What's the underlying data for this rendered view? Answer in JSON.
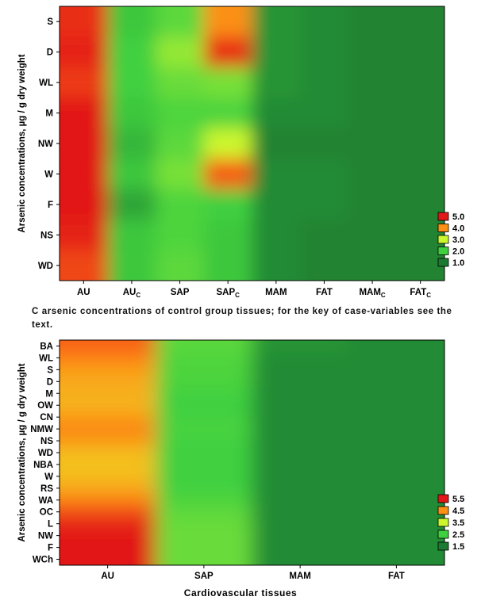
{
  "caption": "C arsenic concentrations of control group tissues; for the key of case-variables see the text.",
  "colors": {
    "dark_green": "#1d7a32",
    "mid_green": "#3fd03f",
    "yellow": "#e8ff2a",
    "orange": "#ff7f12",
    "red": "#e21818"
  },
  "chart_data": [
    {
      "type": "heatmap",
      "title": "",
      "ylabel": "Arsenic concentrations, µg / g dry weight",
      "xlabel": "",
      "x_categories": [
        {
          "base": "AU",
          "sub": ""
        },
        {
          "base": "AU",
          "sub": "C"
        },
        {
          "base": "SAP",
          "sub": ""
        },
        {
          "base": "SAP",
          "sub": "C"
        },
        {
          "base": "MAM",
          "sub": ""
        },
        {
          "base": "FAT",
          "sub": ""
        },
        {
          "base": "MAM",
          "sub": "C"
        },
        {
          "base": "FAT",
          "sub": "C"
        }
      ],
      "y_categories": [
        "S",
        "D",
        "WL",
        "M",
        "NW",
        "W",
        "F",
        "NS",
        "WD"
      ],
      "legend": {
        "position": "right",
        "levels": [
          "5.0",
          "4.0",
          "3.0",
          "2.0",
          "1.0"
        ]
      },
      "color_range": [
        1.0,
        5.0
      ],
      "values": [
        [
          4.8,
          1.9,
          2.2,
          4.0,
          1.3,
          1.2,
          1.1,
          1.1
        ],
        [
          4.9,
          2.0,
          2.6,
          4.8,
          1.3,
          1.2,
          1.1,
          1.1
        ],
        [
          4.7,
          2.0,
          2.3,
          2.4,
          1.3,
          1.2,
          1.1,
          1.1
        ],
        [
          5.0,
          1.9,
          2.1,
          2.1,
          1.2,
          1.2,
          1.1,
          1.1
        ],
        [
          5.4,
          1.7,
          2.2,
          3.0,
          1.1,
          1.1,
          1.1,
          1.1
        ],
        [
          5.2,
          1.9,
          2.4,
          4.4,
          1.2,
          1.2,
          1.1,
          1.1
        ],
        [
          5.4,
          1.5,
          2.1,
          2.0,
          1.2,
          1.2,
          1.1,
          1.1
        ],
        [
          4.9,
          1.9,
          2.1,
          1.9,
          1.2,
          1.1,
          1.1,
          1.1
        ],
        [
          4.6,
          1.9,
          2.2,
          1.9,
          1.2,
          1.1,
          1.1,
          1.1
        ]
      ]
    },
    {
      "type": "heatmap",
      "title": "",
      "ylabel": "Arsenic concentrations, µg / g dry weight",
      "xlabel": "Cardiovascular tissues",
      "x_categories": [
        {
          "base": "AU",
          "sub": ""
        },
        {
          "base": "SAP",
          "sub": ""
        },
        {
          "base": "MAM",
          "sub": ""
        },
        {
          "base": "FAT",
          "sub": ""
        }
      ],
      "y_categories": [
        "BA",
        "WL",
        "S",
        "D",
        "M",
        "OW",
        "CN",
        "NMW",
        "NS",
        "WD",
        "NBA",
        "W",
        "RS",
        "WA",
        "OC",
        "L",
        "NW",
        "F",
        "WCh"
      ],
      "legend": {
        "position": "right",
        "levels": [
          "5.5",
          "4.5",
          "3.5",
          "2.5",
          "1.5"
        ]
      },
      "color_range": [
        1.5,
        5.5
      ],
      "values": [
        [
          4.9,
          2.7,
          1.8,
          1.7
        ],
        [
          4.6,
          2.6,
          1.7,
          1.7
        ],
        [
          4.4,
          2.6,
          1.7,
          1.7
        ],
        [
          4.3,
          2.6,
          1.7,
          1.7
        ],
        [
          4.3,
          2.5,
          1.7,
          1.7
        ],
        [
          4.2,
          2.5,
          1.7,
          1.7
        ],
        [
          4.4,
          2.5,
          1.7,
          1.7
        ],
        [
          4.7,
          2.6,
          1.7,
          1.7
        ],
        [
          4.4,
          2.5,
          1.7,
          1.7
        ],
        [
          4.2,
          2.5,
          1.7,
          1.7
        ],
        [
          4.1,
          2.5,
          1.7,
          1.7
        ],
        [
          4.2,
          2.5,
          1.7,
          1.7
        ],
        [
          4.3,
          2.5,
          1.7,
          1.7
        ],
        [
          4.6,
          2.6,
          1.7,
          1.7
        ],
        [
          5.1,
          2.7,
          1.7,
          1.7
        ],
        [
          5.4,
          2.8,
          1.7,
          1.7
        ],
        [
          5.5,
          2.8,
          1.7,
          1.7
        ],
        [
          5.5,
          2.8,
          1.7,
          1.7
        ],
        [
          5.6,
          2.8,
          1.7,
          1.7
        ]
      ]
    }
  ]
}
